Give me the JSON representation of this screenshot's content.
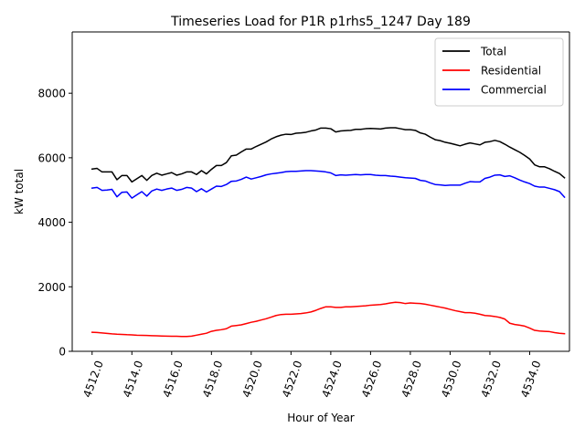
{
  "chart_data": {
    "type": "line",
    "title": "Timeseries Load for P1R p1rhs5_1247  Day 189",
    "xlabel": "Hour of Year",
    "ylabel": "kW total",
    "xlim": [
      4511.0,
      4536.0
    ],
    "ylim": [
      0,
      9900
    ],
    "xticks": [
      4512,
      4514,
      4516,
      4518,
      4520,
      4522,
      4524,
      4526,
      4528,
      4530,
      4532,
      4534
    ],
    "xtick_labels": [
      "4512.0",
      "4514.0",
      "4516.0",
      "4518.0",
      "4520.0",
      "4522.0",
      "4524.0",
      "4526.0",
      "4528.0",
      "4530.0",
      "4532.0",
      "4534.0"
    ],
    "yticks": [
      0,
      2000,
      4000,
      6000,
      8000
    ],
    "ytick_labels": [
      "0",
      "2000",
      "4000",
      "6000",
      "8000"
    ],
    "legend_position": "top-right",
    "x": [
      4512.0,
      4512.25,
      4512.5,
      4512.75,
      4513.0,
      4513.25,
      4513.5,
      4513.75,
      4514.0,
      4514.25,
      4514.5,
      4514.75,
      4515.0,
      4515.25,
      4515.5,
      4515.75,
      4516.0,
      4516.25,
      4516.5,
      4516.75,
      4517.0,
      4517.25,
      4517.5,
      4517.75,
      4518.0,
      4518.25,
      4518.5,
      4518.75,
      4519.0,
      4519.25,
      4519.5,
      4519.75,
      4520.0,
      4520.25,
      4520.5,
      4520.75,
      4521.0,
      4521.25,
      4521.5,
      4521.75,
      4522.0,
      4522.25,
      4522.5,
      4522.75,
      4523.0,
      4523.25,
      4523.5,
      4523.75,
      4524.0,
      4524.25,
      4524.5,
      4524.75,
      4525.0,
      4525.25,
      4525.5,
      4525.75,
      4526.0,
      4526.25,
      4526.5,
      4526.75,
      4527.0,
      4527.25,
      4527.5,
      4527.75,
      4528.0,
      4528.25,
      4528.5,
      4528.75,
      4529.0,
      4529.25,
      4529.5,
      4529.75,
      4530.0,
      4530.25,
      4530.5,
      4530.75,
      4531.0,
      4531.25,
      4531.5,
      4531.75,
      4532.0,
      4532.25,
      4532.5,
      4532.75,
      4533.0,
      4533.25,
      4533.5,
      4533.75,
      4534.0,
      4534.25,
      4534.5,
      4534.75,
      4535.0,
      4535.25,
      4535.5,
      4535.75
    ],
    "series": [
      {
        "name": "Total",
        "color": "#000000",
        "values": [
          5650,
          5670,
          5560,
          5560,
          5560,
          5320,
          5450,
          5450,
          5250,
          5350,
          5450,
          5300,
          5450,
          5520,
          5460,
          5500,
          5540,
          5460,
          5500,
          5560,
          5560,
          5480,
          5600,
          5500,
          5640,
          5760,
          5760,
          5850,
          6060,
          6080,
          6180,
          6270,
          6270,
          6350,
          6420,
          6490,
          6580,
          6650,
          6700,
          6730,
          6720,
          6760,
          6770,
          6790,
          6830,
          6860,
          6920,
          6920,
          6900,
          6800,
          6830,
          6840,
          6850,
          6880,
          6880,
          6900,
          6910,
          6900,
          6890,
          6920,
          6930,
          6930,
          6900,
          6870,
          6870,
          6850,
          6770,
          6730,
          6640,
          6560,
          6530,
          6480,
          6450,
          6410,
          6370,
          6420,
          6460,
          6430,
          6400,
          6480,
          6500,
          6540,
          6500,
          6420,
          6330,
          6250,
          6170,
          6070,
          5960,
          5780,
          5720,
          5720,
          5660,
          5580,
          5510,
          5380
        ]
      },
      {
        "name": "Residential",
        "color": "#ff0000",
        "values": [
          590,
          585,
          570,
          555,
          540,
          530,
          525,
          515,
          510,
          500,
          495,
          490,
          485,
          480,
          475,
          470,
          465,
          465,
          460,
          460,
          470,
          500,
          530,
          560,
          620,
          650,
          670,
          700,
          780,
          800,
          820,
          860,
          900,
          930,
          970,
          1010,
          1060,
          1110,
          1140,
          1150,
          1150,
          1160,
          1170,
          1190,
          1220,
          1270,
          1330,
          1380,
          1380,
          1360,
          1360,
          1380,
          1380,
          1390,
          1400,
          1410,
          1430,
          1440,
          1450,
          1470,
          1500,
          1520,
          1510,
          1480,
          1500,
          1490,
          1480,
          1460,
          1430,
          1400,
          1370,
          1340,
          1300,
          1260,
          1230,
          1200,
          1200,
          1180,
          1150,
          1110,
          1100,
          1080,
          1050,
          1000,
          870,
          830,
          810,
          780,
          720,
          650,
          630,
          620,
          610,
          580,
          560,
          545
        ]
      },
      {
        "name": "Commercial",
        "color": "#0000ff",
        "values": [
          5060,
          5080,
          4990,
          5000,
          5020,
          4790,
          4930,
          4940,
          4750,
          4850,
          4950,
          4810,
          4970,
          5030,
          4990,
          5030,
          5060,
          4990,
          5020,
          5080,
          5060,
          4950,
          5040,
          4940,
          5030,
          5120,
          5110,
          5170,
          5270,
          5280,
          5330,
          5400,
          5340,
          5380,
          5420,
          5470,
          5500,
          5520,
          5540,
          5570,
          5580,
          5580,
          5590,
          5600,
          5600,
          5590,
          5580,
          5560,
          5530,
          5450,
          5470,
          5460,
          5470,
          5480,
          5470,
          5480,
          5480,
          5460,
          5450,
          5450,
          5430,
          5420,
          5400,
          5380,
          5370,
          5360,
          5300,
          5280,
          5220,
          5170,
          5160,
          5140,
          5150,
          5150,
          5150,
          5210,
          5260,
          5250,
          5250,
          5360,
          5400,
          5460,
          5470,
          5420,
          5440,
          5380,
          5310,
          5250,
          5200,
          5120,
          5090,
          5090,
          5050,
          5010,
          4950,
          4780
        ]
      }
    ]
  }
}
